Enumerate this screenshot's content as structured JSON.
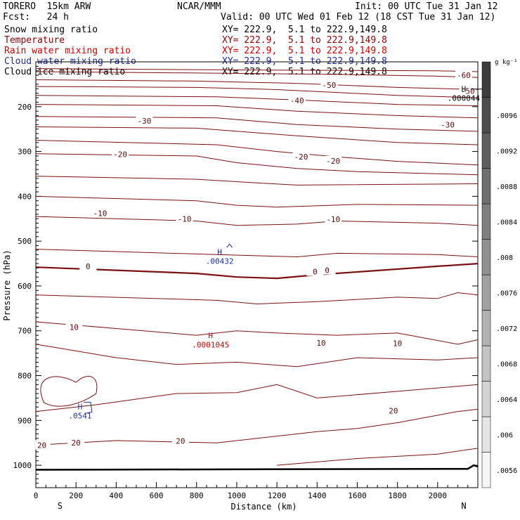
{
  "header": {
    "model": "TORERO  15km ARW",
    "org": "NCAR/MMM",
    "init": "Init: 00 UTC Tue 31 Jan 12",
    "fcst": "Fcst:   24 h",
    "valid": "Valid: 00 UTC Wed 01 Feb 12 (18 CST Tue 31 Jan 12)"
  },
  "legend": [
    {
      "name": "Snow mixing ratio",
      "color": "#000000",
      "xy": "XY= 222.9,  5.1 to 222.9,149.8"
    },
    {
      "name": "Temperature",
      "color": "#8b0000",
      "xy": "XY= 222.9,  5.1 to 222.9,149.8"
    },
    {
      "name": "Rain water mixing ratio",
      "color": "#cc0000",
      "xy": "XY= 222.9,  5.1 to 222.9,149.8"
    },
    {
      "name": "Cloud water mixing ratio",
      "color": "#1f2fa0",
      "xy": "XY= 222.9,  5.1 to 222.9,149.8"
    },
    {
      "name": "Cloud ice mixing ratio",
      "color": "#000000",
      "xy": "XY= 222.9,  5.1 to 222.9,149.8"
    }
  ],
  "chart_data": {
    "type": "contour-cross-section",
    "xlabel": "Distance (km)",
    "ylabel": "Pressure (hPa)",
    "xlim": [
      0,
      2200
    ],
    "ylim": [
      1050,
      100
    ],
    "x_ticks": [
      "0",
      "200",
      "400",
      "600",
      "800",
      "1000",
      "1200",
      "1400",
      "1600",
      "1800",
      "2000"
    ],
    "y_ticks": [
      "200",
      "300",
      "400",
      "500",
      "600",
      "700",
      "800",
      "900",
      "1000"
    ],
    "x_ends": {
      "left": "S",
      "right": "N"
    },
    "colorbar": {
      "unit": "g kg⁻¹",
      "levels": [
        ".0056",
        ".006",
        ".0064",
        ".0068",
        ".0072",
        ".0076",
        ".008",
        ".0084",
        ".0088",
        ".0092",
        ".0096"
      ]
    },
    "temperature_contours": [
      {
        "value": -60,
        "points": [
          [
            0,
            115
          ],
          [
            1000,
            118
          ],
          [
            2000,
            120
          ],
          [
            2200,
            122
          ]
        ]
      },
      {
        "value": -60,
        "points": [
          [
            0,
            122
          ],
          [
            800,
            125
          ],
          [
            1500,
            128
          ],
          [
            2000,
            132
          ],
          [
            2200,
            135
          ]
        ]
      },
      {
        "value": -50,
        "points": [
          [
            0,
            140
          ],
          [
            800,
            143
          ],
          [
            1300,
            148
          ],
          [
            1800,
            157
          ],
          [
            2200,
            162
          ]
        ]
      },
      {
        "value": -50,
        "points": [
          [
            0,
            155
          ],
          [
            800,
            157
          ],
          [
            1200,
            162
          ],
          [
            1800,
            175
          ],
          [
            2200,
            180
          ]
        ]
      },
      {
        "value": -40,
        "points": [
          [
            0,
            175
          ],
          [
            900,
            178
          ],
          [
            1300,
            185
          ],
          [
            1800,
            195
          ],
          [
            2200,
            198
          ]
        ]
      },
      {
        "value": -40,
        "points": [
          [
            0,
            195
          ],
          [
            900,
            198
          ],
          [
            1300,
            210
          ],
          [
            1800,
            220
          ],
          [
            2200,
            225
          ]
        ]
      },
      {
        "value": -30,
        "points": [
          [
            0,
            222
          ],
          [
            900,
            225
          ],
          [
            1300,
            240
          ],
          [
            1800,
            250
          ],
          [
            2200,
            255
          ]
        ]
      },
      {
        "value": -30,
        "points": [
          [
            0,
            245
          ],
          [
            800,
            248
          ],
          [
            1300,
            265
          ],
          [
            1800,
            280
          ],
          [
            2200,
            285
          ]
        ]
      },
      {
        "value": -20,
        "points": [
          [
            0,
            275
          ],
          [
            900,
            285
          ],
          [
            1200,
            300
          ],
          [
            1500,
            312
          ],
          [
            1800,
            322
          ],
          [
            2200,
            330
          ]
        ]
      },
      {
        "value": -20,
        "points": [
          [
            0,
            305
          ],
          [
            800,
            310
          ],
          [
            1000,
            325
          ],
          [
            1300,
            338
          ],
          [
            1600,
            345
          ],
          [
            2200,
            352
          ]
        ]
      },
      {
        "value": -10,
        "points": [
          [
            0,
            355
          ],
          [
            800,
            362
          ],
          [
            1100,
            370
          ],
          [
            1300,
            375
          ],
          [
            2200,
            372
          ]
        ]
      },
      {
        "value": -10,
        "points": [
          [
            0,
            400
          ],
          [
            800,
            410
          ],
          [
            1000,
            420
          ],
          [
            1200,
            424
          ],
          [
            1600,
            418
          ],
          [
            2200,
            420
          ]
        ]
      },
      {
        "value": -10,
        "points": [
          [
            0,
            445
          ],
          [
            800,
            455
          ],
          [
            1000,
            465
          ],
          [
            1300,
            462
          ],
          [
            1500,
            455
          ],
          [
            2000,
            460
          ],
          [
            2200,
            465
          ]
        ]
      },
      {
        "value": 0,
        "points": [
          [
            0,
            518
          ],
          [
            900,
            530
          ],
          [
            1300,
            535
          ],
          [
            1500,
            527
          ],
          [
            2000,
            530
          ],
          [
            2200,
            535
          ]
        ]
      },
      {
        "value": 0,
        "points": [
          [
            0,
            558
          ],
          [
            800,
            572
          ],
          [
            1000,
            580
          ],
          [
            1200,
            583
          ],
          [
            1400,
            575
          ],
          [
            2000,
            556
          ],
          [
            2200,
            550
          ]
        ]
      },
      {
        "value": 0,
        "points": [
          [
            0,
            620
          ],
          [
            900,
            632
          ],
          [
            1100,
            640
          ],
          [
            1400,
            635
          ],
          [
            1800,
            625
          ],
          [
            2000,
            628
          ],
          [
            2100,
            615
          ],
          [
            2200,
            620
          ]
        ]
      },
      {
        "value": 10,
        "points": [
          [
            0,
            680
          ],
          [
            400,
            695
          ],
          [
            800,
            710
          ],
          [
            1000,
            700
          ],
          [
            1200,
            705
          ],
          [
            1500,
            710
          ],
          [
            1800,
            705
          ],
          [
            2100,
            730
          ],
          [
            2200,
            720
          ]
        ]
      },
      {
        "value": 10,
        "points": [
          [
            0,
            730
          ],
          [
            400,
            760
          ],
          [
            700,
            775
          ],
          [
            1000,
            770
          ],
          [
            1300,
            780
          ],
          [
            1600,
            760
          ],
          [
            2000,
            765
          ],
          [
            2200,
            760
          ]
        ]
      },
      {
        "value": 20,
        "points": [
          [
            0,
            880
          ],
          [
            300,
            865
          ],
          [
            700,
            840
          ],
          [
            1000,
            838
          ],
          [
            1200,
            820
          ],
          [
            1400,
            850
          ],
          [
            1800,
            835
          ],
          [
            2200,
            820
          ]
        ]
      },
      {
        "value": 20,
        "points": [
          [
            0,
            955
          ],
          [
            400,
            945
          ],
          [
            900,
            950
          ],
          [
            1400,
            925
          ],
          [
            1600,
            918
          ],
          [
            1800,
            905
          ],
          [
            2100,
            880
          ],
          [
            2200,
            875
          ]
        ]
      },
      {
        "value": 20,
        "points": [
          [
            1200,
            1000
          ],
          [
            1600,
            985
          ],
          [
            2000,
            975
          ],
          [
            2200,
            962
          ]
        ]
      }
    ],
    "temperature_labels": [
      {
        "text": "-60",
        "x": 2130,
        "p": 130
      },
      {
        "text": "-50",
        "x": 1460,
        "p": 152
      },
      {
        "text": "-50",
        "x": 2150,
        "p": 165
      },
      {
        "text": "-40",
        "x": 1300,
        "p": 186
      },
      {
        "text": "-30",
        "x": 540,
        "p": 232
      },
      {
        "text": "-30",
        "x": 2050,
        "p": 240
      },
      {
        "text": "-20",
        "x": 420,
        "p": 306
      },
      {
        "text": "-20",
        "x": 1320,
        "p": 312
      },
      {
        "text": "-20",
        "x": 1480,
        "p": 321
      },
      {
        "text": "-10",
        "x": 320,
        "p": 438
      },
      {
        "text": "-10",
        "x": 740,
        "p": 450
      },
      {
        "text": "-10",
        "x": 1480,
        "p": 451
      },
      {
        "text": "0",
        "x": 260,
        "p": 556
      },
      {
        "text": "0",
        "x": 1390,
        "p": 568
      },
      {
        "text": "0",
        "x": 1450,
        "p": 565
      },
      {
        "text": "10",
        "x": 190,
        "p": 692
      },
      {
        "text": "10",
        "x": 1420,
        "p": 727
      },
      {
        "text": "10",
        "x": 1800,
        "p": 728
      },
      {
        "text": "20",
        "x": 1780,
        "p": 878
      },
      {
        "text": "20",
        "x": 720,
        "p": 946
      },
      {
        "text": "20",
        "x": 200,
        "p": 950
      },
      {
        "text": "20",
        "x": 30,
        "p": 955
      }
    ],
    "cloud_water": {
      "label": "H",
      "value": ".00432",
      "x": 915,
      "p": 530
    },
    "rain_water": {
      "label": "H",
      "value": ".0001045",
      "x": 870,
      "p": 717
    },
    "cloud_ice": {
      "label": "H",
      "value": ".000044",
      "x": 2130,
      "p": 167
    },
    "snow": {
      "label": "H",
      "value": ".0541",
      "x": 220,
      "p": 875
    }
  }
}
